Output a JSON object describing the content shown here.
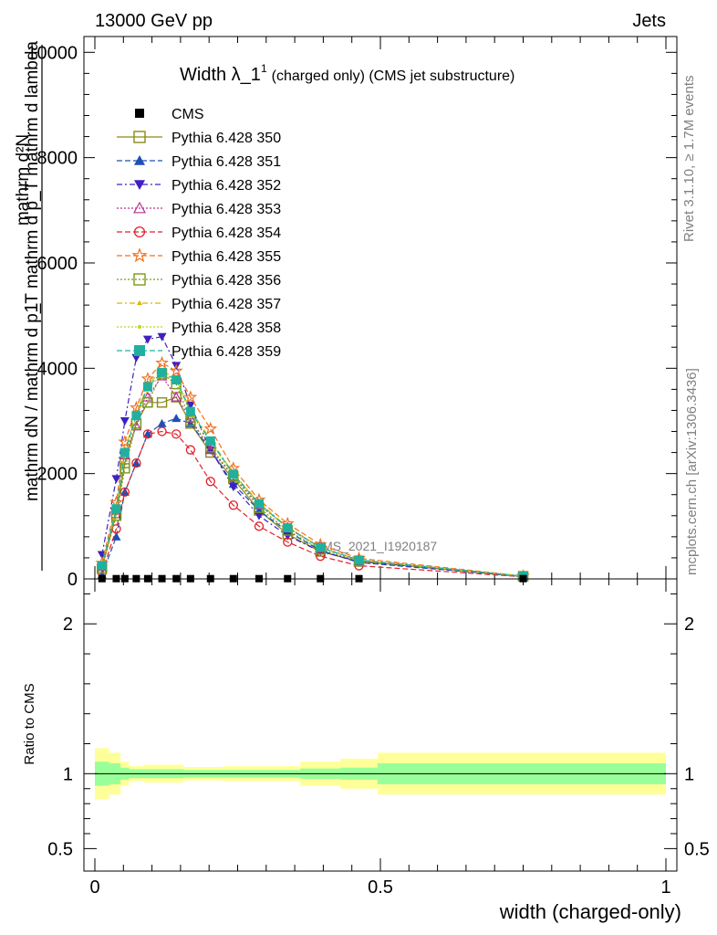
{
  "header": {
    "left": "13000 GeV pp",
    "right": "Jets"
  },
  "side_labels": {
    "rivet": "Rivet 3.1.10, ≥ 1.7M events",
    "mcplots": "mcplots.cern.ch [arXiv:1306.3436]"
  },
  "chart_data": {
    "type": "line",
    "title": {
      "main": "Width λ_1",
      "sup": "1",
      "sub": "(charged only) (CMS jet substructure)"
    },
    "watermark": "CMS_2021_I1920187",
    "ylabel": {
      "numer": "1",
      "denom": "mathrm dN / mathrm d p_T mathrm d p_T mathrm d lambda",
      "top": "mathrm d²N"
    },
    "xlabel": "width (charged-only)",
    "xlim": [
      0,
      1
    ],
    "ylim": [
      0,
      10300
    ],
    "x_ticks": [
      "0",
      "0.5",
      "1"
    ],
    "y_ticks": [
      {
        "v": 0,
        "label": "0"
      },
      {
        "v": 2000,
        "label": "2000"
      },
      {
        "v": 4000,
        "label": "4000"
      },
      {
        "v": 6000,
        "label": "6000"
      },
      {
        "v": 8000,
        "label": "8000"
      },
      {
        "v": 10000,
        "label": "10000"
      }
    ],
    "x": [
      0.0125,
      0.0375,
      0.0525,
      0.0725,
      0.0925,
      0.1175,
      0.1425,
      0.1675,
      0.2025,
      0.2425,
      0.2875,
      0.3375,
      0.395,
      0.4625,
      0.75
    ],
    "series": [
      {
        "name": "CMS",
        "color": "#000000",
        "marker": "square-filled",
        "dash": "none",
        "values": [
          5,
          5,
          5,
          5,
          5,
          5,
          5,
          5,
          5,
          5,
          5,
          5,
          5,
          5,
          5
        ]
      },
      {
        "name": "Pythia 6.428 350",
        "color": "#8a8a1a",
        "marker": "square-open",
        "dash": "solid",
        "values": [
          200,
          1250,
          2200,
          2950,
          3350,
          3350,
          3450,
          2950,
          2400,
          1900,
          1300,
          850,
          520,
          330,
          50
        ]
      },
      {
        "name": "Pythia 6.428 351",
        "color": "#1f4fb4",
        "marker": "triangle-up-filled",
        "dash": "6,3",
        "values": [
          80,
          800,
          1650,
          2200,
          2750,
          2950,
          3050,
          2950,
          2450,
          1800,
          1300,
          900,
          540,
          310,
          45
        ]
      },
      {
        "name": "Pythia 6.428 352",
        "color": "#4020c0",
        "marker": "triangle-down-filled",
        "dash": "6,3,2,3",
        "values": [
          460,
          1900,
          3000,
          4200,
          4550,
          4600,
          4050,
          3300,
          2450,
          1750,
          1200,
          820,
          520,
          330,
          50
        ]
      },
      {
        "name": "Pythia 6.428 353",
        "color": "#b43090",
        "marker": "triangle-up-open",
        "dash": "2,2",
        "values": [
          230,
          1300,
          2350,
          2900,
          3450,
          3850,
          3450,
          3050,
          2450,
          1950,
          1400,
          980,
          600,
          360,
          50
        ]
      },
      {
        "name": "Pythia 6.428 354",
        "color": "#e0202a",
        "marker": "circle-open",
        "dash": "6,3",
        "values": [
          120,
          950,
          1650,
          2200,
          2750,
          2800,
          2750,
          2450,
          1850,
          1400,
          1000,
          700,
          430,
          250,
          40
        ]
      },
      {
        "name": "Pythia 6.428 355",
        "color": "#f07020",
        "marker": "star-open",
        "dash": "6,3",
        "values": [
          300,
          1450,
          2600,
          3250,
          3800,
          4100,
          3950,
          3450,
          2850,
          2100,
          1500,
          1050,
          650,
          390,
          55
        ]
      },
      {
        "name": "Pythia 6.428 356",
        "color": "#7a9a1a",
        "marker": "square-open",
        "dash": "2,2",
        "values": [
          200,
          1200,
          2100,
          2950,
          3350,
          3900,
          3700,
          3000,
          2500,
          1950,
          1350,
          920,
          560,
          340,
          50
        ]
      },
      {
        "name": "Pythia 6.428 357",
        "color": "#d8b800",
        "marker": "tri-small",
        "dash": "6,3,2,3",
        "values": [
          260,
          1350,
          2450,
          3150,
          3700,
          3950,
          3800,
          3200,
          2650,
          2000,
          1450,
          980,
          600,
          360,
          52
        ]
      },
      {
        "name": "Pythia 6.428 358",
        "color": "#b8d820",
        "marker": "dot",
        "dash": "2,2",
        "values": [
          240,
          1300,
          2350,
          3050,
          3600,
          3900,
          3750,
          3150,
          2600,
          1980,
          1420,
          960,
          590,
          355,
          51
        ]
      },
      {
        "name": "Pythia 6.428 359",
        "color": "#20b0a0",
        "marker": "square-filled",
        "dash": "6,3",
        "values": [
          250,
          1330,
          2400,
          3100,
          3650,
          3920,
          3780,
          3180,
          2620,
          1990,
          1430,
          970,
          595,
          358,
          52
        ]
      }
    ],
    "ratio": {
      "ylabel": "Ratio to CMS",
      "ylim": [
        0.35,
        2.3
      ],
      "y_ticks": [
        {
          "v": 0.5,
          "label": "0.5"
        },
        {
          "v": 1,
          "label": "1"
        },
        {
          "v": 2,
          "label": "2"
        }
      ],
      "band_edges": [
        0,
        0.025,
        0.045,
        0.06,
        0.085,
        0.105,
        0.13,
        0.155,
        0.18,
        0.225,
        0.26,
        0.315,
        0.36,
        0.43,
        0.495,
        1.0
      ],
      "inner": [
        [
          0.92,
          1.08
        ],
        [
          0.93,
          1.07
        ],
        [
          0.96,
          1.04
        ],
        [
          0.97,
          1.03
        ],
        [
          0.97,
          1.03
        ],
        [
          0.97,
          1.03
        ],
        [
          0.97,
          1.03
        ],
        [
          0.975,
          1.025
        ],
        [
          0.975,
          1.025
        ],
        [
          0.975,
          1.025
        ],
        [
          0.975,
          1.025
        ],
        [
          0.975,
          1.025
        ],
        [
          0.965,
          1.035
        ],
        [
          0.96,
          1.04
        ],
        [
          0.93,
          1.07
        ]
      ],
      "outer": [
        [
          0.83,
          1.17
        ],
        [
          0.86,
          1.14
        ],
        [
          0.92,
          1.08
        ],
        [
          0.95,
          1.05
        ],
        [
          0.94,
          1.06
        ],
        [
          0.94,
          1.06
        ],
        [
          0.94,
          1.06
        ],
        [
          0.955,
          1.045
        ],
        [
          0.955,
          1.045
        ],
        [
          0.95,
          1.05
        ],
        [
          0.95,
          1.05
        ],
        [
          0.95,
          1.05
        ],
        [
          0.92,
          1.08
        ],
        [
          0.9,
          1.1
        ],
        [
          0.86,
          1.14
        ]
      ]
    }
  }
}
